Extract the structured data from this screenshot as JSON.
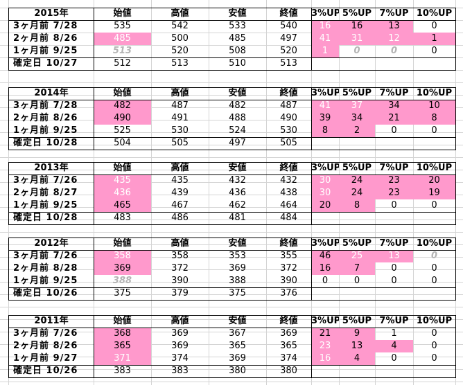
{
  "headers": {
    "open": "始値",
    "high": "高値",
    "low": "安値",
    "close": "終値",
    "up3": "3%UP",
    "up5": "5%UP",
    "up7": "7%UP",
    "up10": "10%UP"
  },
  "colors": {
    "highlight": "#ff99cc",
    "grid": "#d4d4d4",
    "border": "#000000"
  },
  "blocks": [
    {
      "year": "2015年",
      "rows": [
        {
          "label": "3ヶ月前  7/28",
          "open": "535",
          "high": "542",
          "low": "533",
          "close": "540",
          "up3": "16",
          "up5": "16",
          "up7": "13",
          "up10": "0"
        },
        {
          "label": "2ヶ月前  8/26",
          "open": "485",
          "high": "500",
          "low": "485",
          "close": "497",
          "up3": "41",
          "up5": "31",
          "up7": "12",
          "up10": "1"
        },
        {
          "label": "1ヶ月前  9/25",
          "open": "513",
          "high": "520",
          "low": "508",
          "close": "520",
          "up3": "1",
          "up5": "0",
          "up7": "0",
          "up10": "0"
        },
        {
          "label": "確定日  10/27",
          "open": "512",
          "high": "513",
          "low": "510",
          "close": "513"
        }
      ]
    },
    {
      "year": "2014年",
      "rows": [
        {
          "label": "3ヶ月前  7/28",
          "open": "482",
          "high": "487",
          "low": "482",
          "close": "487",
          "up3": "41",
          "up5": "37",
          "up7": "34",
          "up10": "10"
        },
        {
          "label": "2ヶ月前  8/26",
          "open": "490",
          "high": "491",
          "low": "488",
          "close": "490",
          "up3": "39",
          "up5": "34",
          "up7": "21",
          "up10": "8"
        },
        {
          "label": "1ヶ月前  9/25",
          "open": "525",
          "high": "530",
          "low": "524",
          "close": "530",
          "up3": "8",
          "up5": "2",
          "up7": "0",
          "up10": "0"
        },
        {
          "label": "確定日  10/28",
          "open": "504",
          "high": "505",
          "low": "497",
          "close": "505"
        }
      ]
    },
    {
      "year": "2013年",
      "rows": [
        {
          "label": "3ヶ月前  7/26",
          "open": "435",
          "high": "435",
          "low": "432",
          "close": "432",
          "up3": "30",
          "up5": "24",
          "up7": "23",
          "up10": "20"
        },
        {
          "label": "2ヶ月前  8/27",
          "open": "436",
          "high": "439",
          "low": "436",
          "close": "438",
          "up3": "30",
          "up5": "24",
          "up7": "23",
          "up10": "19"
        },
        {
          "label": "1ヶ月前  9/25",
          "open": "465",
          "high": "467",
          "low": "462",
          "close": "464",
          "up3": "20",
          "up5": "8",
          "up7": "0",
          "up10": "0"
        },
        {
          "label": "確定日  10/28",
          "open": "483",
          "high": "486",
          "low": "481",
          "close": "484"
        }
      ]
    },
    {
      "year": "2012年",
      "rows": [
        {
          "label": "3ヶ月前  7/26",
          "open": "358",
          "high": "358",
          "low": "353",
          "close": "355",
          "up3": "46",
          "up5": "25",
          "up7": "13",
          "up10": "0"
        },
        {
          "label": "2ヶ月前  8/28",
          "open": "369",
          "high": "372",
          "low": "369",
          "close": "372",
          "up3": "16",
          "up5": "7",
          "up7": "0",
          "up10": "0"
        },
        {
          "label": "1ヶ月前  9/25",
          "open": "388",
          "high": "390",
          "low": "388",
          "close": "390",
          "up3": "0",
          "up5": "0",
          "up7": "0",
          "up10": "0"
        },
        {
          "label": "確定日  10/26",
          "open": "375",
          "high": "379",
          "low": "375",
          "close": "376"
        }
      ]
    },
    {
      "year": "2011年",
      "rows": [
        {
          "label": "3ヶ月前  7/26",
          "open": "368",
          "high": "369",
          "low": "367",
          "close": "369",
          "up3": "21",
          "up5": "9",
          "up7": "1",
          "up10": "0"
        },
        {
          "label": "2ヶ月前  8/26",
          "open": "365",
          "high": "369",
          "low": "365",
          "close": "365",
          "up3": "23",
          "up5": "13",
          "up7": "4",
          "up10": "0"
        },
        {
          "label": "1ヶ月前  9/27",
          "open": "371",
          "high": "374",
          "low": "369",
          "close": "374",
          "up3": "16",
          "up5": "4",
          "up7": "0",
          "up10": "0"
        },
        {
          "label": "確定日  10/26",
          "open": "383",
          "high": "383",
          "low": "380",
          "close": "380"
        }
      ]
    }
  ]
}
